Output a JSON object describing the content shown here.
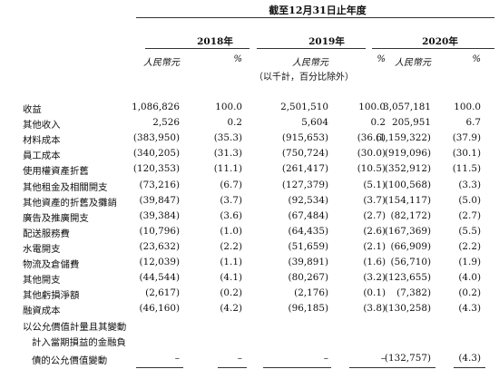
{
  "header": {
    "period": "截至12月31日止年度",
    "years": [
      "2018年",
      "2019年",
      "2020年"
    ],
    "unit_amount": "人民幣元",
    "unit_pct": "%",
    "note": "（以千計，百分比除外）"
  },
  "rows": [
    {
      "label": "收益",
      "a18": "1,086,826",
      "p18": "100.0",
      "a19": "2,501,510",
      "p19": "100.0",
      "a20": "3,057,181",
      "p20": "100.0"
    },
    {
      "label": "其他收入",
      "a18": "2,526",
      "p18": "0.2",
      "a19": "5,604",
      "p19": "0.2",
      "a20": "205,951",
      "p20": "6.7"
    },
    {
      "label": "材料成本",
      "a18": "(383,950)",
      "p18": "(35.3)",
      "a19": "(915,653)",
      "p19": "(36.6)",
      "a20": "(1,159,322)",
      "p20": "(37.9)"
    },
    {
      "label": "員工成本",
      "a18": "(340,205)",
      "p18": "(31.3)",
      "a19": "(750,724)",
      "p19": "(30.0)",
      "a20": "(919,096)",
      "p20": "(30.1)"
    },
    {
      "label": "使用權資產折舊",
      "a18": "(120,353)",
      "p18": "(11.1)",
      "a19": "(261,417)",
      "p19": "(10.5)",
      "a20": "(352,912)",
      "p20": "(11.5)"
    },
    {
      "label": "其他租金及相關開支",
      "a18": "(73,216)",
      "p18": "(6.7)",
      "a19": "(127,379)",
      "p19": "(5.1)",
      "a20": "(100,568)",
      "p20": "(3.3)"
    },
    {
      "label": "其他資產的折舊及攤銷",
      "a18": "(39,847)",
      "p18": "(3.7)",
      "a19": "(92,534)",
      "p19": "(3.7)",
      "a20": "(154,117)",
      "p20": "(5.0)"
    },
    {
      "label": "廣告及推廣開支",
      "a18": "(39,384)",
      "p18": "(3.6)",
      "a19": "(67,484)",
      "p19": "(2.7)",
      "a20": "(82,172)",
      "p20": "(2.7)"
    },
    {
      "label": "配送服務費",
      "a18": "(10,796)",
      "p18": "(1.0)",
      "a19": "(64,435)",
      "p19": "(2.6)",
      "a20": "(167,369)",
      "p20": "(5.5)"
    },
    {
      "label": "水電開支",
      "a18": "(23,632)",
      "p18": "(2.2)",
      "a19": "(51,659)",
      "p19": "(2.1)",
      "a20": "(66,909)",
      "p20": "(2.2)"
    },
    {
      "label": "物流及倉儲費",
      "a18": "(12,039)",
      "p18": "(1.1)",
      "a19": "(39,891)",
      "p19": "(1.6)",
      "a20": "(56,710)",
      "p20": "(1.9)"
    },
    {
      "label": "其他開支",
      "a18": "(44,544)",
      "p18": "(4.1)",
      "a19": "(80,267)",
      "p19": "(3.2)",
      "a20": "(123,655)",
      "p20": "(4.0)"
    },
    {
      "label": "其他虧損淨額",
      "a18": "(2,617)",
      "p18": "(0.2)",
      "a19": "(2,176)",
      "p19": "(0.1)",
      "a20": "(7,382)",
      "p20": "(0.2)"
    },
    {
      "label": "融資成本",
      "a18": "(46,160)",
      "p18": "(4.2)",
      "a19": "(96,185)",
      "p19": "(3.8)",
      "a20": "(130,258)",
      "p20": "(4.3)"
    }
  ],
  "last_item": {
    "label_lines": [
      "以公允價值計量且其變動",
      "計入當期損益的金融負",
      "債的公允價值變動"
    ],
    "a18": "–",
    "p18": "–",
    "a19": "–",
    "p19": "–",
    "a20": "(132,757)",
    "p20": "(4.3)"
  }
}
